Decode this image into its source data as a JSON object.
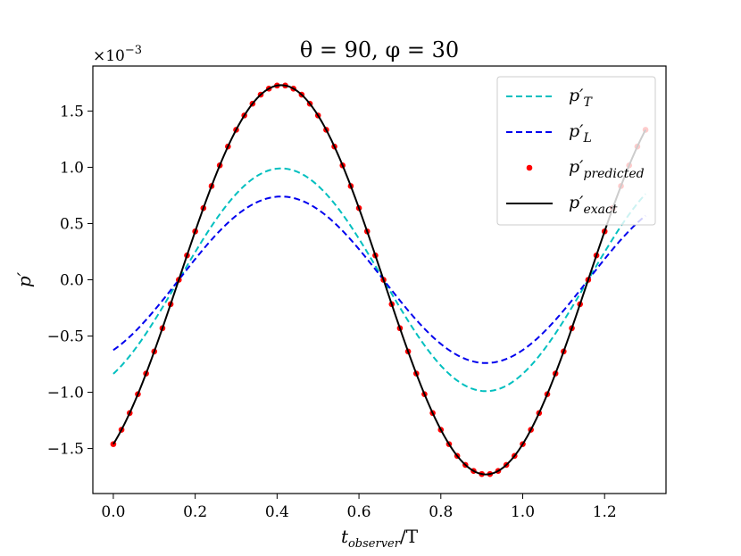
{
  "chart_data": {
    "type": "line",
    "title": "θ = 90, φ = 30",
    "xlabel": {
      "base": "t",
      "sub": "observer",
      "rest": "/T"
    },
    "ylabel": "p′",
    "y_offset_text": "×10",
    "y_offset_exp": "−3",
    "xlim": [
      -0.05,
      1.35
    ],
    "ylim": [
      -1.9,
      1.9
    ],
    "x_ticks": [
      0.0,
      0.2,
      0.4,
      0.6,
      0.8,
      1.0,
      1.2
    ],
    "x_tick_labels": [
      "0.0",
      "0.2",
      "0.4",
      "0.6",
      "0.8",
      "1.0",
      "1.2"
    ],
    "y_ticks": [
      -1.5,
      -1.0,
      -0.5,
      0.0,
      0.5,
      1.0,
      1.5
    ],
    "y_tick_labels": [
      "−1.5",
      "−1.0",
      "−0.5",
      "0.0",
      "0.5",
      "1.0",
      "1.5"
    ],
    "grid": false,
    "legend_position": "top-right",
    "x_range": [
      0.0,
      1.3
    ],
    "series": [
      {
        "name": "p′T",
        "label_base": "p′",
        "label_sub": "T",
        "style": "dashed",
        "color": "#00bfbf",
        "amplitude": 0.99,
        "peak_x": 0.41
      },
      {
        "name": "p′L",
        "label_base": "p′",
        "label_sub": "L",
        "style": "dashed",
        "color": "#0000ee",
        "amplitude": 0.74,
        "peak_x": 0.41
      },
      {
        "name": "p′predicted",
        "label_base": "p′",
        "label_sub": "predicted",
        "style": "markers",
        "color": "#ff0000",
        "amplitude": 1.73,
        "peak_x": 0.41,
        "num_points": 66
      },
      {
        "name": "p′exact",
        "label_base": "p′",
        "label_sub": "exact",
        "style": "solid",
        "color": "#000000",
        "amplitude": 1.73,
        "peak_x": 0.41
      }
    ]
  }
}
